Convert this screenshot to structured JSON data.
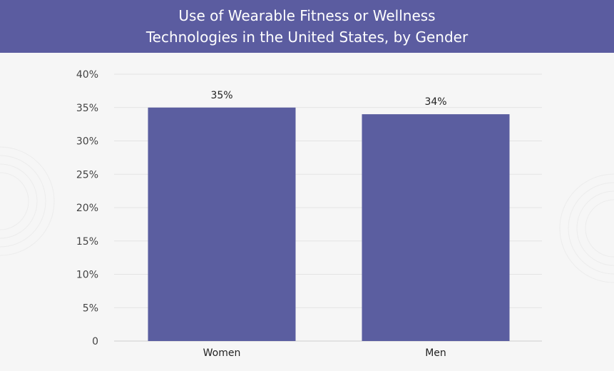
{
  "chart_data": {
    "type": "bar",
    "title": "Use of Wearable Fitness or Wellness Technologies in the United States, by Gender",
    "title_lines": [
      "Use of Wearable Fitness or Wellness",
      "Technologies in the United States, by Gender"
    ],
    "categories": [
      "Women",
      "Men"
    ],
    "values": [
      35,
      34
    ],
    "data_labels": [
      "35%",
      "34%"
    ],
    "xlabel": "",
    "ylabel": "",
    "ylim": [
      0,
      40
    ],
    "yticks": [
      0,
      5,
      10,
      15,
      20,
      25,
      30,
      35,
      40
    ],
    "ytick_labels": [
      "0",
      "5%",
      "10%",
      "15%",
      "20%",
      "25%",
      "30%",
      "35%",
      "40%"
    ],
    "grid": true,
    "legend": "none",
    "colors": {
      "bar": "#5b5ea0",
      "header": "#5b5ca0",
      "grid": "#e4e4e4"
    }
  }
}
